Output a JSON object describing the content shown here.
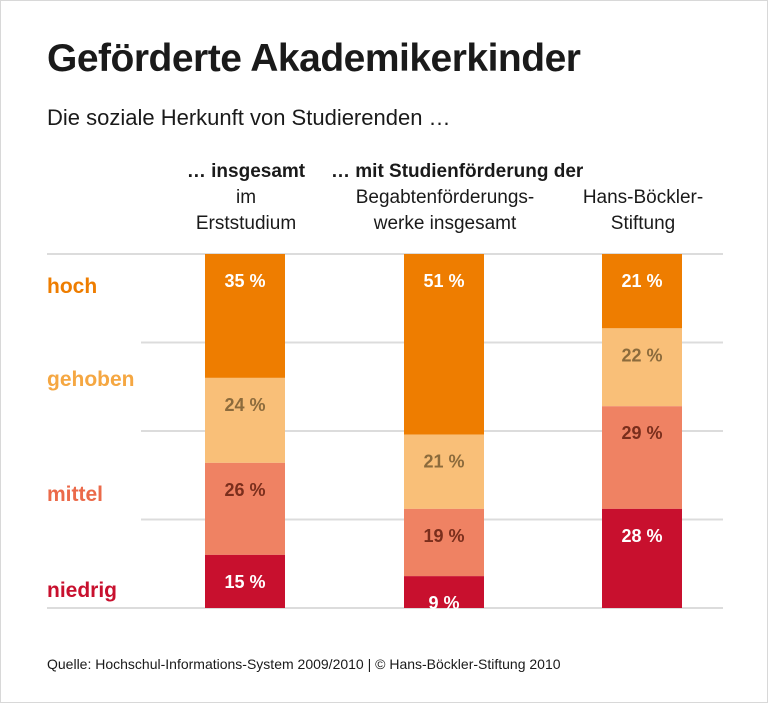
{
  "title": "Geförderte Akademikerkinder",
  "subtitle": "Die soziale Herkunft von Studierenden …",
  "headers": {
    "group1": "… insgesamt",
    "group2": "… mit Studienförderung der",
    "col1": [
      "im",
      "Erststudium"
    ],
    "col2": [
      "Begabtenförderungs-",
      "werke insgesamt"
    ],
    "col3": [
      "Hans-Böckler-",
      "Stiftung"
    ]
  },
  "source": "Quelle: Hochschul-Informations-System 2009/2010 | © Hans-Böckler-Stiftung 2010",
  "chart_data": {
    "type": "bar",
    "stacked": true,
    "unit": "%",
    "categories": [
      "im Erststudium",
      "Begabtenförderungswerke insgesamt",
      "Hans-Böckler-Stiftung"
    ],
    "ylim": [
      0,
      100
    ],
    "grid": true,
    "series": [
      {
        "name": "hoch",
        "values": [
          35,
          51,
          21
        ],
        "labels": [
          "35 %",
          "51 %",
          "21 %"
        ],
        "color": "#EE7D00",
        "label_color": "#EE7D00",
        "value_color": "#FFFFFF"
      },
      {
        "name": "gehoben",
        "values": [
          24,
          21,
          22
        ],
        "labels": [
          "24 %",
          "21 %",
          "22 %"
        ],
        "color": "#F9BF78",
        "label_color": "#F5A742",
        "value_color": "#8C6B3C"
      },
      {
        "name": "mittel",
        "values": [
          26,
          19,
          29
        ],
        "labels": [
          "26 %",
          "19 %",
          "29 %"
        ],
        "color": "#EF8263",
        "label_color": "#EB6A4A",
        "value_color": "#7A2E1C"
      },
      {
        "name": "niedrig",
        "values": [
          15,
          9,
          28
        ],
        "labels": [
          "15 %",
          "9 %",
          "28 %"
        ],
        "color": "#C8102E",
        "label_color": "#C8102E",
        "value_color": "#FFFFFF"
      }
    ]
  }
}
